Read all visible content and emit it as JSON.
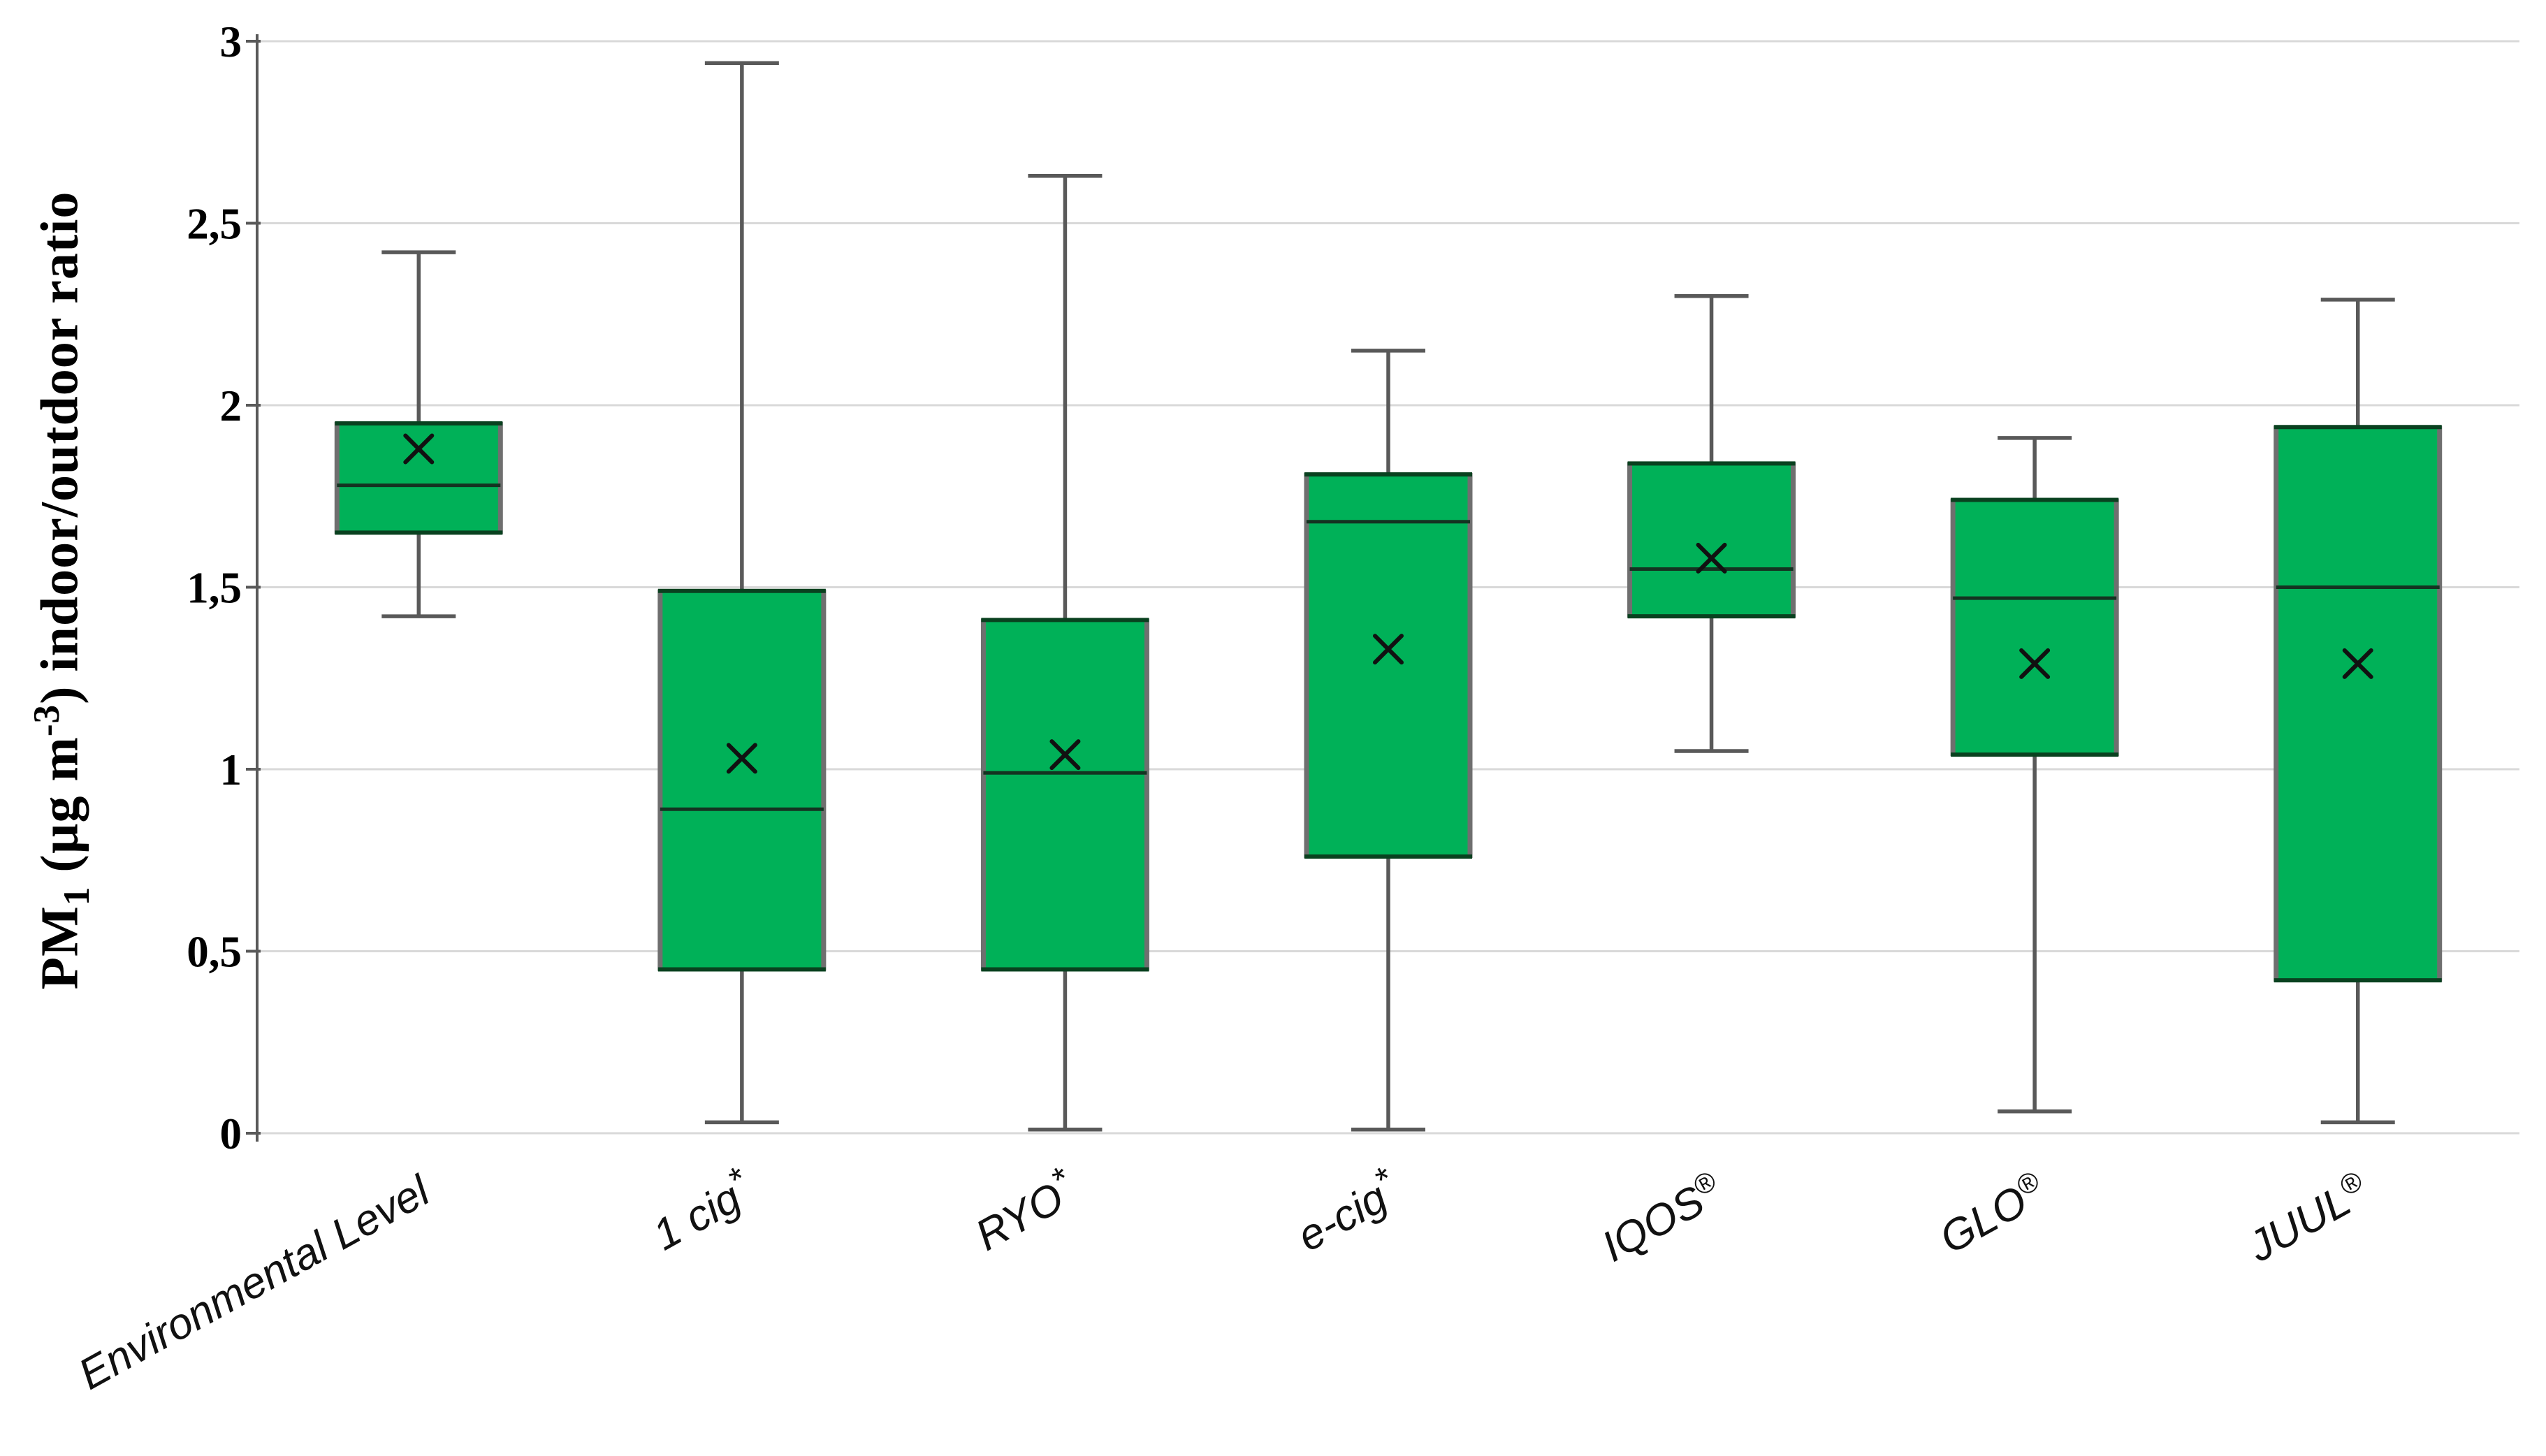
{
  "chart_data": {
    "type": "box",
    "title": "",
    "ylabel": "PM₁ (µg m⁻³) indoor/outdoor ratio",
    "ylabel_parts": [
      {
        "text": "PM",
        "style": "normal"
      },
      {
        "text": "1",
        "style": "sub"
      },
      {
        "text": " (µg m",
        "style": "normal"
      },
      {
        "text": "-3",
        "style": "sup"
      },
      {
        "text": ") indoor/outdoor ratio",
        "style": "normal"
      }
    ],
    "xlabel": "",
    "y_axis": {
      "min": 0,
      "max": 3,
      "tick_step": 0.5,
      "tick_values": [
        0,
        0.5,
        1,
        1.5,
        2,
        2.5,
        3
      ],
      "tick_labels": [
        "0",
        "0,5",
        "1",
        "1,5",
        "2",
        "2,5",
        "3"
      ],
      "decimal_separator": ","
    },
    "grid": true,
    "legend": false,
    "mean_marker": "x",
    "categories": [
      "Environmental Level",
      "1 cig*",
      "RYO*",
      "e-cig*",
      "IQOS®",
      "GLO®",
      "JUUL®"
    ],
    "boxes": [
      {
        "label": "Environmental Level",
        "label_base": "Environmental Level",
        "label_sup": "",
        "whisker_low": 1.42,
        "q1": 1.65,
        "median": 1.78,
        "mean": 1.88,
        "q3": 1.95,
        "whisker_high": 2.42
      },
      {
        "label": "1 cig*",
        "label_base": "1 cig",
        "label_sup": "*",
        "whisker_low": 0.03,
        "q1": 0.45,
        "median": 0.89,
        "mean": 1.03,
        "q3": 1.49,
        "whisker_high": 2.94
      },
      {
        "label": "RYO*",
        "label_base": "RYO",
        "label_sup": "*",
        "whisker_low": 0.01,
        "q1": 0.45,
        "median": 0.99,
        "mean": 1.04,
        "q3": 1.41,
        "whisker_high": 2.63
      },
      {
        "label": "e-cig*",
        "label_base": "e-cig",
        "label_sup": "*",
        "whisker_low": 0.01,
        "q1": 0.76,
        "median": 1.68,
        "mean": 1.33,
        "q3": 1.81,
        "whisker_high": 2.15
      },
      {
        "label": "IQOS®",
        "label_base": "IQOS",
        "label_sup": "®",
        "whisker_low": 1.05,
        "q1": 1.42,
        "median": 1.55,
        "mean": 1.58,
        "q3": 1.84,
        "whisker_high": 2.3
      },
      {
        "label": "GLO®",
        "label_base": "GLO",
        "label_sup": "®",
        "whisker_low": 0.06,
        "q1": 1.04,
        "median": 1.47,
        "mean": 1.29,
        "q3": 1.74,
        "whisker_high": 1.91
      },
      {
        "label": "JUUL®",
        "label_base": "JUUL",
        "label_sup": "®",
        "whisker_low": 0.03,
        "q1": 0.42,
        "median": 1.5,
        "mean": 1.29,
        "q3": 1.94,
        "whisker_high": 2.29
      }
    ],
    "colors": {
      "box_fill": "#00b158",
      "box_side_border": "#6f6f6f",
      "box_top_bottom_border": "#09411f",
      "median_line": "#143321",
      "whisker": "#595959",
      "mean_marker": "#111111",
      "gridline": "#d9d9d9",
      "axis_line": "#595959",
      "tick_text": "#000000",
      "category_text": "#111111",
      "background": "#ffffff"
    }
  }
}
